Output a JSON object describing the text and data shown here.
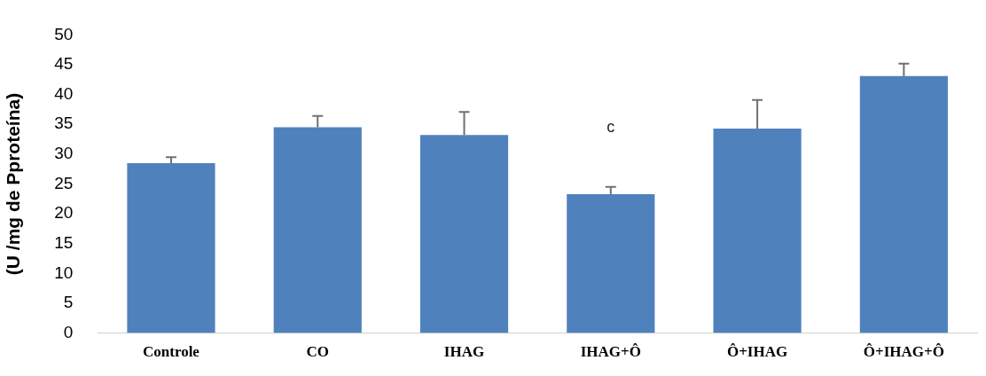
{
  "chart_data": {
    "type": "bar",
    "ylabel": "(U /mg de Pproteína)",
    "categories": [
      "Controle",
      "CO",
      "IHAG",
      "IHAG+Ô",
      "Ô+IHAG",
      "Ô+IHAG+Ô"
    ],
    "values": [
      28.5,
      34.5,
      33.2,
      23.3,
      34.3,
      43.1
    ],
    "errors": [
      [
        28.5,
        29.5
      ],
      [
        34.5,
        36.4
      ],
      [
        33.2,
        37.1
      ],
      [
        23.3,
        24.5
      ],
      [
        34.3,
        39.1
      ],
      [
        43.1,
        45.2
      ]
    ],
    "color": "#4f81bd",
    "ylim": [
      0,
      50
    ],
    "yticks": [
      0,
      5,
      10,
      15,
      20,
      25,
      30,
      35,
      40,
      45,
      50
    ],
    "grid": false,
    "legend": false,
    "annotations": [
      "c"
    ]
  }
}
